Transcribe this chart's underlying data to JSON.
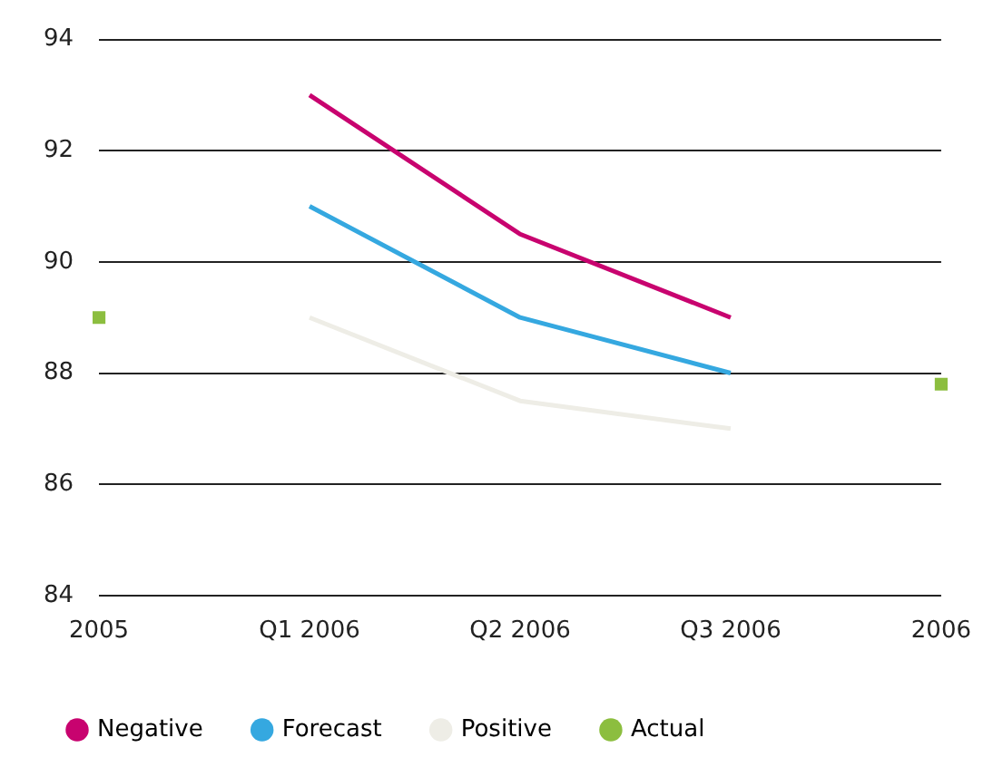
{
  "chart_data": {
    "type": "line",
    "categories": [
      "2005",
      "Q1 2006",
      "Q2 2006",
      "Q3 2006",
      "2006"
    ],
    "series": [
      {
        "name": "Negative",
        "color": "#c8036f",
        "values": [
          null,
          93,
          90.5,
          89,
          null
        ]
      },
      {
        "name": "Forecast",
        "color": "#35a8e0",
        "values": [
          null,
          91,
          89,
          88,
          null
        ]
      },
      {
        "name": "Positive",
        "color": "#eeede6",
        "values": [
          null,
          89,
          87.5,
          87,
          null
        ]
      },
      {
        "name": "Actual",
        "color": "#8cbe3f",
        "type": "scatter",
        "marker": "square",
        "values": [
          89,
          null,
          null,
          null,
          87.8
        ]
      }
    ],
    "ylim": [
      84,
      94
    ],
    "yticks": [
      84,
      86,
      88,
      90,
      92,
      94
    ],
    "grid": "y",
    "legend": "bottom",
    "marker": "none",
    "line_style": "solid"
  }
}
